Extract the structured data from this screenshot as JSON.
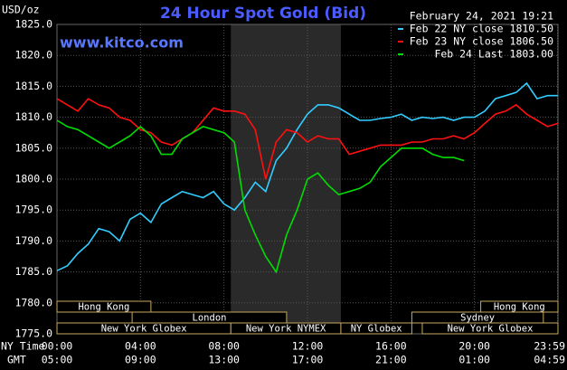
{
  "chart_data": {
    "type": "line",
    "title": "24 Hour Spot Gold (Bid)",
    "y_label": "USD/oz",
    "timestamp": "February 24, 2021 19:21",
    "watermark": "www.kitco.com",
    "x_label": "NY Time",
    "x2_label": "GMT",
    "xlim": [
      0,
      24
    ],
    "xticks": [
      {
        "value": 0,
        "label": "00:00"
      },
      {
        "value": 4,
        "label": "04:00"
      },
      {
        "value": 8,
        "label": "08:00"
      },
      {
        "value": 12,
        "label": "12:00"
      },
      {
        "value": 16,
        "label": "16:00"
      },
      {
        "value": 20,
        "label": "20:00"
      },
      {
        "value": 23.98,
        "label": "23:59"
      }
    ],
    "x2tick_labels": [
      "05:00",
      "09:00",
      "13:00",
      "17:00",
      "21:00",
      "01:00",
      "04:59"
    ],
    "ylim": [
      1775,
      1825
    ],
    "yticks": [
      {
        "value": 1775,
        "label": "1775.0"
      },
      {
        "value": 1780,
        "label": "1780.0"
      },
      {
        "value": 1785,
        "label": "1785.0"
      },
      {
        "value": 1790,
        "label": "1790.0"
      },
      {
        "value": 1795,
        "label": "1795.0"
      },
      {
        "value": 1800,
        "label": "1800.0"
      },
      {
        "value": 1805,
        "label": "1805.0"
      },
      {
        "value": 1810,
        "label": "1810.0"
      },
      {
        "value": 1815,
        "label": "1815.0"
      },
      {
        "value": 1820,
        "label": "1820.0"
      },
      {
        "value": 1825,
        "label": "1825.0"
      }
    ],
    "grid": true,
    "x": [
      0,
      0.5,
      1,
      1.5,
      2,
      2.5,
      3,
      3.5,
      4,
      4.5,
      5,
      5.5,
      6,
      6.5,
      7,
      7.5,
      8,
      8.5,
      9,
      9.5,
      10,
      10.5,
      11,
      11.5,
      12,
      12.5,
      13,
      13.5,
      14,
      14.5,
      15,
      15.5,
      16,
      16.5,
      17,
      17.5,
      18,
      18.5,
      19,
      19.5,
      20,
      20.5,
      21,
      21.5,
      22,
      22.5,
      23,
      23.5,
      24
    ],
    "series": [
      {
        "name": "Feb 22 NY close 1810.50",
        "color": "#33ccff",
        "values": [
          1785.2,
          1786,
          1788,
          1789.5,
          1792,
          1791.5,
          1790,
          1793.5,
          1794.5,
          1793,
          1796,
          1797,
          1798,
          1797.5,
          1797,
          1798,
          1796,
          1795,
          1797,
          1799.5,
          1798,
          1803,
          1805,
          1808,
          1810.5,
          1812,
          1812,
          1811.5,
          1810.5,
          1809.5,
          1809.5,
          1809.8,
          1810,
          1810.5,
          1809.5,
          1810,
          1809.8,
          1810,
          1809.5,
          1810,
          1810,
          1811,
          1813,
          1813.5,
          1814,
          1815.5,
          1813,
          1813.5,
          1813.5
        ]
      },
      {
        "name": "Feb 23 NY close 1806.50",
        "color": "#ff1010",
        "values": [
          1813,
          1812,
          1811,
          1813,
          1812,
          1811.5,
          1810,
          1809.5,
          1808,
          1807.5,
          1806,
          1805.5,
          1806.5,
          1807.5,
          1809.5,
          1811.5,
          1811,
          1811,
          1810.5,
          1808,
          1800,
          1806,
          1808,
          1807.5,
          1806,
          1807,
          1806.5,
          1806.5,
          1804,
          1804.5,
          1805,
          1805.5,
          1805.5,
          1805.5,
          1806,
          1806,
          1806.5,
          1806.5,
          1807,
          1806.5,
          1807.5,
          1809,
          1810.5,
          1811,
          1812,
          1810.5,
          1809.5,
          1808.5,
          1809
        ]
      },
      {
        "name": "Feb 24 Last 1803.00",
        "color": "#00dd00",
        "values": [
          1809.5,
          1808.5,
          1808,
          1807,
          1806,
          1805,
          1806,
          1807,
          1808.5,
          1807,
          1804,
          1804,
          1806.5,
          1807.5,
          1808.5,
          1808,
          1807.5,
          1806,
          1795,
          1791,
          1787.5,
          1785,
          1791,
          1795,
          1800,
          1801,
          1799,
          1797.5,
          1798,
          1798.5,
          1799.5,
          1802,
          1803.5,
          1805,
          1805,
          1805,
          1804,
          1803.5,
          1803.5,
          1803,
          null,
          null,
          null,
          null,
          null,
          null,
          null,
          null,
          null
        ]
      }
    ],
    "session_rows": [
      [
        {
          "label": "Hong Kong",
          "start": 0,
          "end": 4.5
        },
        {
          "label": "Hong Kong",
          "start": 20.3,
          "end": 24
        }
      ],
      [
        {
          "label": "London",
          "start": 3.6,
          "end": 11
        },
        {
          "label": "Sydney",
          "start": 17,
          "end": 23.3
        }
      ],
      [
        {
          "label": "New York Globex",
          "start": 0,
          "end": 8.33
        },
        {
          "label": "New York NYMEX",
          "start": 8.33,
          "end": 13.6,
          "shaded": true
        },
        {
          "label": "NY Globex",
          "start": 13.6,
          "end": 17
        },
        {
          "label": "New York Globex",
          "start": 17.5,
          "end": 24
        }
      ]
    ]
  }
}
